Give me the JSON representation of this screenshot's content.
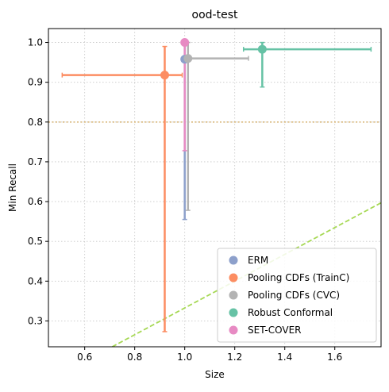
{
  "chart_data": {
    "type": "scatter",
    "title": "ood-test",
    "xlabel": "Size",
    "ylabel": "Min Recall",
    "xlim": [
      0.455,
      1.785
    ],
    "ylim": [
      0.235,
      1.035
    ],
    "xticks": [
      0.6,
      0.8,
      1.0,
      1.2,
      1.4,
      1.6
    ],
    "xtick_labels": [
      "0.6",
      "0.8",
      "1.0",
      "1.2",
      "1.4",
      "1.6"
    ],
    "yticks": [
      0.3,
      0.4,
      0.5,
      0.6,
      0.7,
      0.8,
      0.9,
      1.0
    ],
    "ytick_labels": [
      "0.3",
      "0.4",
      "0.5",
      "0.6",
      "0.7",
      "0.8",
      "0.9",
      "1.0"
    ],
    "grid": true,
    "legend_position": "lower-right",
    "reference_lines": [
      {
        "kind": "horizontal",
        "y": 0.8,
        "color": "#d9b779",
        "style": "dotted"
      },
      {
        "kind": "line",
        "x1": 0.71,
        "y1": 0.235,
        "x2": 1.785,
        "y2": 0.597,
        "color": "#a6d854",
        "style": "dashed"
      }
    ],
    "series": [
      {
        "name": "ERM",
        "color": "#8da0cb",
        "x": 1.0,
        "y": 0.958,
        "xerr": [
          1.0,
          1.0
        ],
        "yerr": [
          0.555,
          1.0
        ]
      },
      {
        "name": "Pooling CDFs (TrainC)",
        "color": "#fc8d62",
        "x": 0.92,
        "y": 0.918,
        "xerr": [
          0.51,
          0.99
        ],
        "yerr": [
          0.273,
          0.99
        ]
      },
      {
        "name": "Pooling CDFs (CVC)",
        "color": "#b3b3b3",
        "x": 1.013,
        "y": 0.96,
        "xerr": [
          1.0,
          1.255
        ],
        "yerr": [
          0.578,
          1.0
        ]
      },
      {
        "name": "Robust Conformal",
        "color": "#66c2a5",
        "x": 1.31,
        "y": 0.983,
        "xerr": [
          1.235,
          1.745
        ],
        "yerr": [
          0.888,
          1.0
        ]
      },
      {
        "name": "SET-COVER",
        "color": "#e78ac3",
        "x": 1.0,
        "y": 1.0,
        "xerr": [
          1.0,
          1.0
        ],
        "yerr": [
          0.728,
          1.0
        ]
      }
    ]
  }
}
